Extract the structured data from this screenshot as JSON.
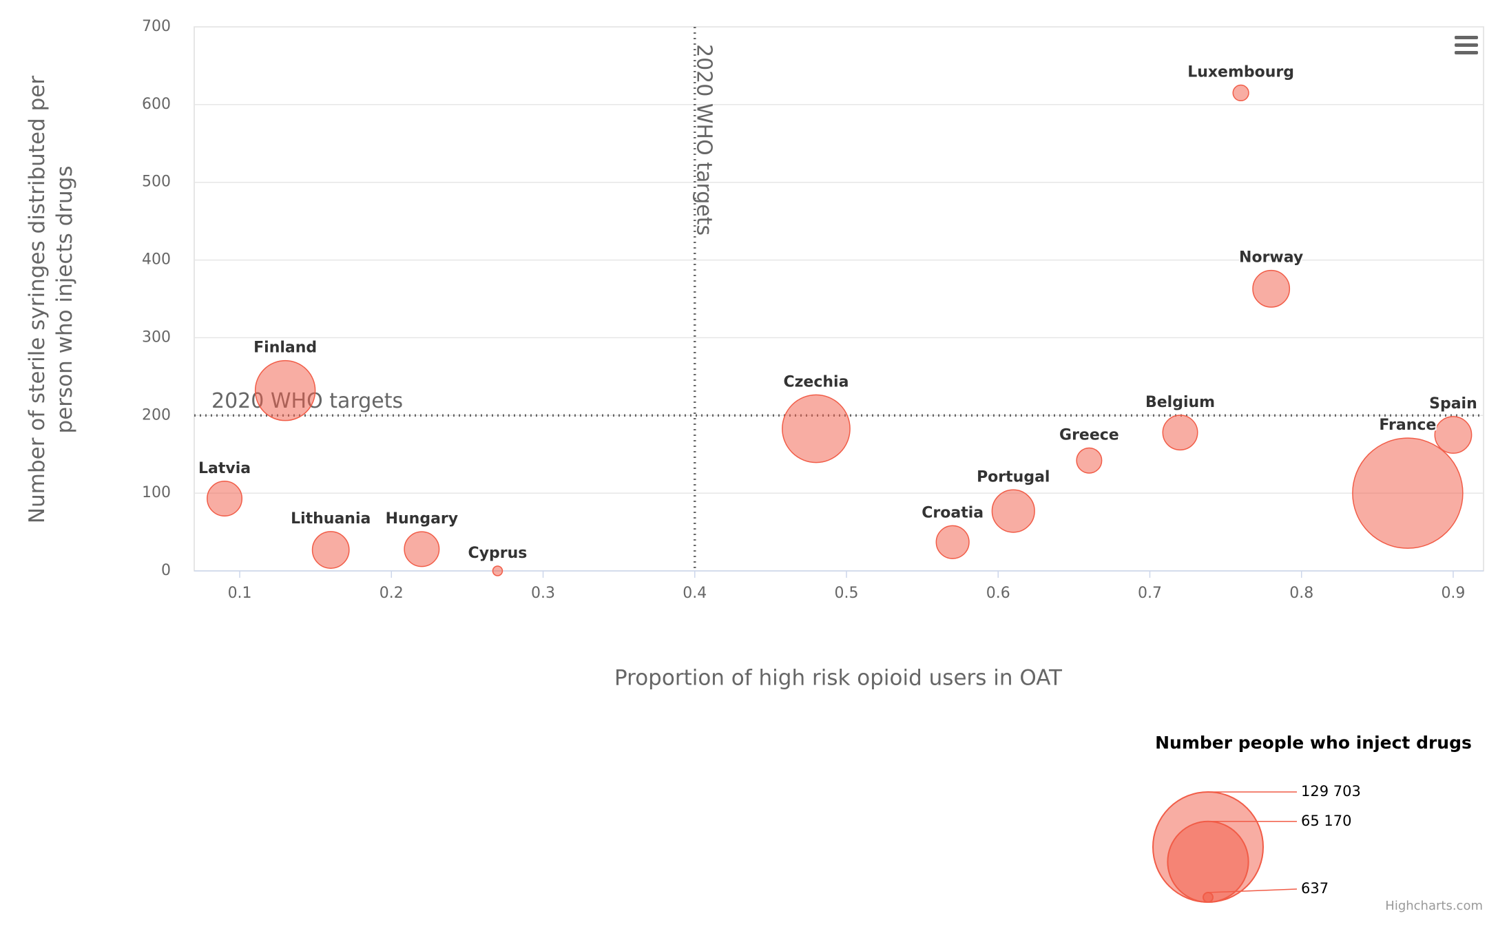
{
  "chart_data": {
    "type": "bubble",
    "x_label": "Proportion of high risk opioid users in OAT",
    "y_label": "Number of sterile syringes distributed per person who injects drugs",
    "xlim": [
      0.07,
      0.92
    ],
    "xticks": [
      0.1,
      0.2,
      0.3,
      0.4,
      0.5,
      0.6,
      0.7,
      0.8,
      0.9
    ],
    "ylim": [
      0,
      700
    ],
    "yticks": [
      0,
      100,
      200,
      300,
      400,
      500,
      600,
      700
    ],
    "grid": true,
    "color": "#f15c47",
    "points": [
      {
        "label": "Latvia",
        "x": 0.09,
        "y": 93,
        "z": 8700
      },
      {
        "label": "Finland",
        "x": 0.13,
        "y": 232,
        "z": 32900
      },
      {
        "label": "Lithuania",
        "x": 0.16,
        "y": 27,
        "z": 10000
      },
      {
        "label": "Hungary",
        "x": 0.22,
        "y": 28,
        "z": 8700
      },
      {
        "label": "Cyprus",
        "x": 0.27,
        "y": 0,
        "z": 637
      },
      {
        "label": "Czechia",
        "x": 0.48,
        "y": 183,
        "z": 43600
      },
      {
        "label": "Croatia",
        "x": 0.57,
        "y": 37,
        "z": 7500
      },
      {
        "label": "Portugal",
        "x": 0.61,
        "y": 77,
        "z": 14400
      },
      {
        "label": "Greece",
        "x": 0.66,
        "y": 142,
        "z": 3700
      },
      {
        "label": "Belgium",
        "x": 0.72,
        "y": 178,
        "z": 8700
      },
      {
        "label": "Luxembourg",
        "x": 0.76,
        "y": 615,
        "z": 1100
      },
      {
        "label": "Norway",
        "x": 0.78,
        "y": 363,
        "z": 10000
      },
      {
        "label": "France",
        "x": 0.87,
        "y": 100,
        "z": 129703
      },
      {
        "label": "Spain",
        "x": 0.9,
        "y": 175,
        "z": 10000
      }
    ],
    "plot_lines": [
      {
        "axis": "x",
        "value": 0.4,
        "label": "2020 WHO targets"
      },
      {
        "axis": "y",
        "value": 200,
        "label": "2020 WHO targets"
      }
    ],
    "size_legend": {
      "title": "Number people who inject drugs",
      "ticks": [
        {
          "value": 129703,
          "label": "129 703"
        },
        {
          "value": 65170,
          "label": "65 170"
        },
        {
          "value": 637,
          "label": "637"
        }
      ]
    },
    "credits": "Highcharts.com"
  }
}
